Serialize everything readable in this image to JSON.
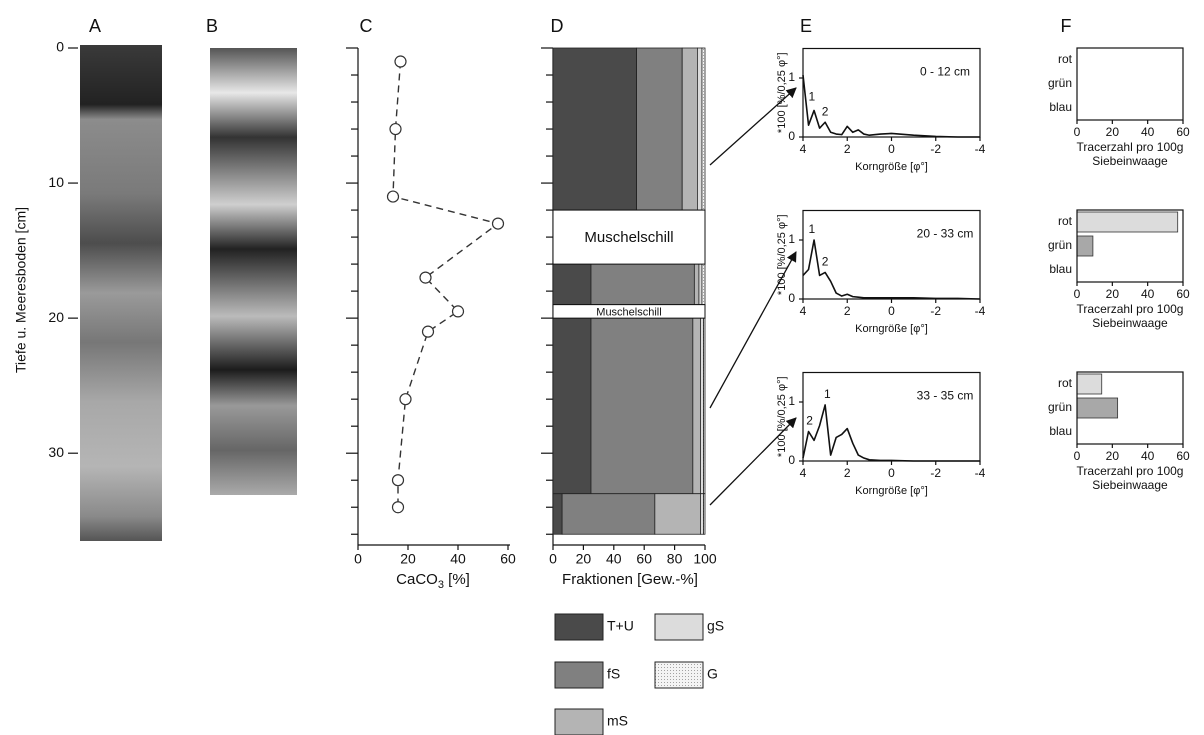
{
  "panel_labels": [
    "A",
    "B",
    "C",
    "D",
    "E",
    "F"
  ],
  "depth_axis": {
    "label": "Tiefe u. Meeresboden [cm]",
    "ylim": [
      0,
      36.5
    ],
    "yticks": [
      0,
      10,
      20,
      30
    ],
    "yticks_minor": [
      0,
      2,
      4,
      6,
      8,
      10,
      12,
      14,
      16,
      18,
      20,
      22,
      24,
      26,
      28,
      30,
      32,
      34,
      36
    ]
  },
  "chart_data": [
    {
      "type": "profile",
      "values": [
        17,
        15,
        14,
        56,
        27,
        40,
        28,
        19,
        16,
        16
      ],
      "depths": [
        1,
        6,
        11,
        13,
        17,
        19.5,
        21,
        26,
        32,
        34
      ],
      "xlim": [
        0,
        60
      ],
      "xticks": [
        0,
        20,
        40,
        60
      ],
      "xlabel": [
        "CaCO",
        "3",
        " [%]"
      ],
      "color": "#333333"
    },
    {
      "type": "stacked_profile",
      "intervals": [
        [
          0,
          12
        ],
        [
          16,
          19
        ],
        [
          20,
          33
        ],
        [
          33,
          36
        ]
      ],
      "series": [
        {
          "name": "T+U",
          "color": "#4a4a4a",
          "values": [
            55,
            25,
            25,
            6
          ]
        },
        {
          "name": "fS",
          "color": "#808080",
          "values": [
            30,
            68,
            67,
            61
          ]
        },
        {
          "name": "mS",
          "color": "#b4b4b4",
          "values": [
            10,
            3,
            5,
            30
          ]
        },
        {
          "name": "gS",
          "color": "#dcdcdc",
          "values": [
            3,
            2,
            2,
            2
          ]
        },
        {
          "name": "G",
          "color": "#f2f2f2",
          "values": [
            2,
            2,
            1,
            1
          ]
        }
      ],
      "gaps": [
        {
          "text": "Muschelschill",
          "interval": [
            12,
            16
          ]
        },
        {
          "text": "Muschelschill",
          "interval": [
            19,
            20
          ]
        }
      ],
      "xlim": [
        0,
        100
      ],
      "xticks": [
        0,
        20,
        40,
        60,
        80,
        100
      ],
      "xlabel": "Fraktionen [Gew.-%]"
    },
    {
      "type": "line",
      "annotation": "0 - 12 cm",
      "x": [
        4,
        3.75,
        3.5,
        3.25,
        3,
        2.75,
        2.5,
        2.25,
        2,
        1.75,
        1.5,
        1.25,
        1,
        0.5,
        0,
        -1,
        -2,
        -3,
        -4
      ],
      "values": [
        1.05,
        0.2,
        0.45,
        0.15,
        0.25,
        0.08,
        0.05,
        0.04,
        0.18,
        0.08,
        0.12,
        0.05,
        0.03,
        0.05,
        0.06,
        0.03,
        0.01,
        0,
        0
      ],
      "peaks": [
        {
          "text": "1",
          "x": 3.6,
          "y": 0.5
        },
        {
          "text": "2",
          "x": 3.0,
          "y": 0.25
        }
      ],
      "xlim": [
        4,
        -4
      ],
      "xticks": [
        4,
        2,
        0,
        -2,
        -4
      ],
      "ylim": [
        0,
        1.5
      ],
      "yticks": [
        0,
        1
      ],
      "ylabel": "*100 [%/0,25 φ°]",
      "xlabel": "Korngröße [φ°]",
      "color": "#111111"
    },
    {
      "type": "line",
      "annotation": "20 - 33 cm",
      "x": [
        4,
        3.75,
        3.5,
        3.25,
        3,
        2.75,
        2.5,
        2.25,
        2,
        1.75,
        1.5,
        1.25,
        1,
        0.5,
        0,
        -1,
        -2,
        -3,
        -4
      ],
      "values": [
        0.4,
        0.5,
        1.0,
        0.4,
        0.45,
        0.3,
        0.1,
        0.05,
        0.08,
        0.04,
        0.03,
        0.02,
        0.02,
        0.02,
        0.02,
        0.02,
        0.01,
        0.01,
        0
      ],
      "peaks": [
        {
          "text": "1",
          "x": 3.6,
          "y": 1.0
        },
        {
          "text": "2",
          "x": 3.0,
          "y": 0.45
        }
      ],
      "xlim": [
        4,
        -4
      ],
      "xticks": [
        4,
        2,
        0,
        -2,
        -4
      ],
      "ylim": [
        0,
        1.5
      ],
      "yticks": [
        0,
        1
      ],
      "ylabel": "*100 [%/0,25 φ°]",
      "xlabel": "Korngröße [φ°]",
      "color": "#111111"
    },
    {
      "type": "line",
      "annotation": "33 - 35 cm",
      "x": [
        4,
        3.75,
        3.5,
        3.25,
        3,
        2.75,
        2.5,
        2.25,
        2,
        1.75,
        1.5,
        1.25,
        1,
        0.5,
        0,
        -1,
        -2,
        -3,
        -4
      ],
      "values": [
        0.05,
        0.5,
        0.35,
        0.6,
        0.95,
        0.1,
        0.4,
        0.45,
        0.55,
        0.3,
        0.1,
        0.05,
        0.02,
        0.01,
        0.01,
        0,
        0,
        0,
        0
      ],
      "peaks": [
        {
          "text": "1",
          "x": 2.9,
          "y": 0.95
        },
        {
          "text": "2",
          "x": 3.7,
          "y": 0.5
        }
      ],
      "xlim": [
        4,
        -4
      ],
      "xticks": [
        4,
        2,
        0,
        -2,
        -4
      ],
      "ylim": [
        0,
        1.5
      ],
      "yticks": [
        0,
        1
      ],
      "ylabel": "*100 [%/0,25 φ°]",
      "xlabel": "Korngröße [φ°]",
      "color": "#111111"
    },
    {
      "type": "hbar",
      "categories": [
        "rot",
        "grün",
        "blau"
      ],
      "values": [
        0,
        0,
        0
      ],
      "colors": [
        "#dcdcdc",
        "#a8a8a8",
        "#707070"
      ],
      "xlim": [
        0,
        60
      ],
      "xticks": [
        0,
        20,
        40,
        60
      ],
      "xlabel": [
        "Tracerzahl pro 100g",
        "Siebeinwaage"
      ]
    },
    {
      "type": "hbar",
      "categories": [
        "rot",
        "grün",
        "blau"
      ],
      "values": [
        57,
        9,
        0
      ],
      "colors": [
        "#dcdcdc",
        "#a8a8a8",
        "#707070"
      ],
      "xlim": [
        0,
        60
      ],
      "xticks": [
        0,
        20,
        40,
        60
      ],
      "xlabel": [
        "Tracerzahl pro 100g",
        "Siebeinwaage"
      ]
    },
    {
      "type": "hbar",
      "categories": [
        "rot",
        "grün",
        "blau"
      ],
      "values": [
        14,
        23,
        0
      ],
      "colors": [
        "#dcdcdc",
        "#a8a8a8",
        "#707070"
      ],
      "xlim": [
        0,
        60
      ],
      "xticks": [
        0,
        20,
        40,
        60
      ],
      "xlabel": [
        "Tracerzahl pro 100g",
        "Siebeinwaage"
      ]
    }
  ]
}
